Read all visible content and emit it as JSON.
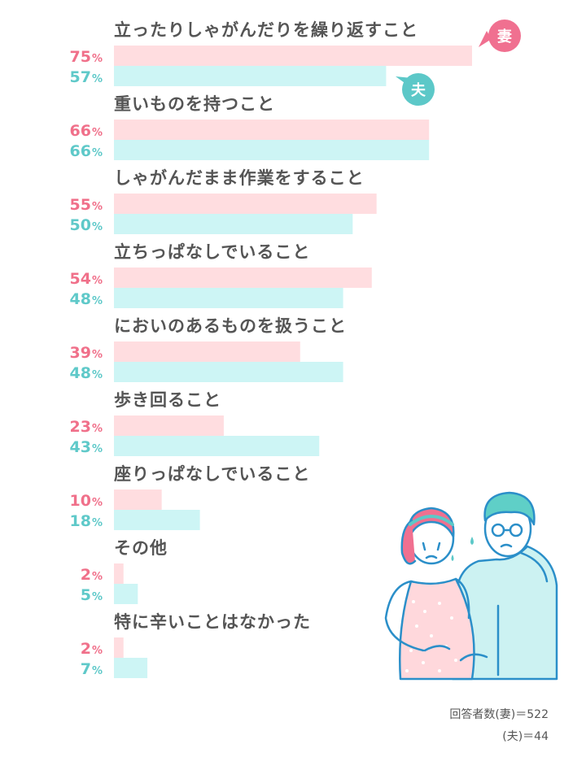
{
  "chart_data": {
    "type": "bar",
    "orientation": "horizontal",
    "categories": [
      "立ったりしゃがんだりを繰り返すこと",
      "重いものを持つこと",
      "しゃがんだまま作業をすること",
      "立ちっぱなしでいること",
      "においのあるものを扱うこと",
      "歩き回ること",
      "座りっぱなしでいること",
      "その他",
      "特に辛いことはなかった"
    ],
    "series": [
      {
        "name": "妻",
        "values": [
          75,
          66,
          55,
          54,
          39,
          23,
          10,
          2,
          2
        ],
        "color": "#ffdde0",
        "label_color": "#f0708a"
      },
      {
        "name": "夫",
        "values": [
          57,
          66,
          50,
          48,
          48,
          43,
          18,
          5,
          7
        ],
        "color": "#cdf5f5",
        "label_color": "#5fc9c9"
      }
    ],
    "value_suffix": "%",
    "xlim": [
      0,
      75
    ]
  },
  "legend_badges": {
    "wife": {
      "label": "妻",
      "color": "#f07090"
    },
    "husband": {
      "label": "夫",
      "color": "#5cc8c8"
    }
  },
  "footer": {
    "line1": "回答者数(妻)＝522",
    "line2": "(夫)＝44"
  }
}
